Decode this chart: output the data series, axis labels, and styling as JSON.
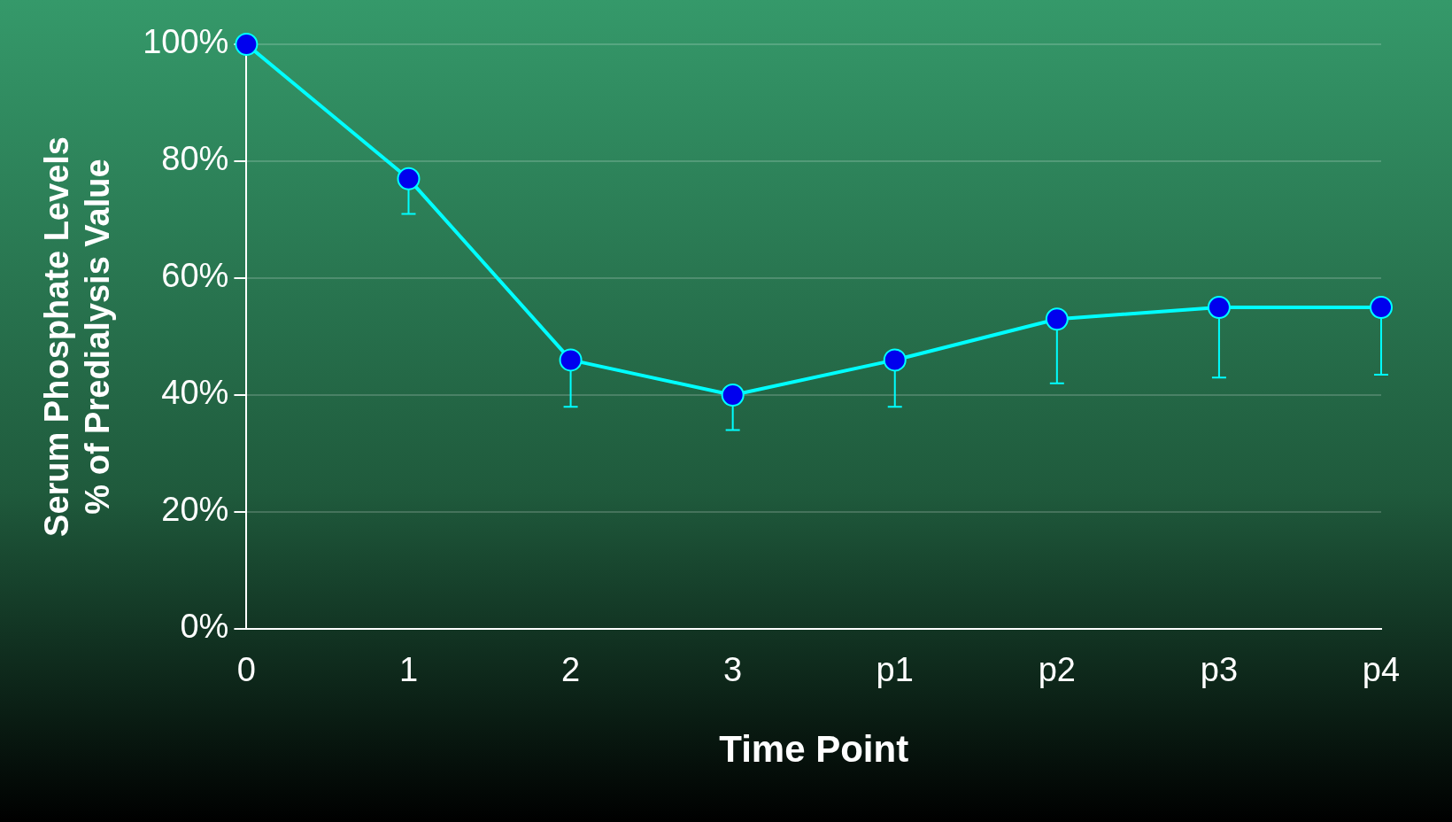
{
  "chart_data": {
    "type": "line",
    "xlabel": "Time Point",
    "ylabel": "Serum Phosphate Levels\n% of Predialysis Value",
    "categories": [
      "0",
      "1",
      "2",
      "3",
      "p1",
      "p2",
      "p3",
      "p4"
    ],
    "series": [
      {
        "color": "#00ffff",
        "values": [
          100,
          77,
          46,
          40,
          46,
          53,
          55,
          55
        ],
        "errors": [
          null,
          [
            71,
            77
          ],
          [
            38,
            46
          ],
          [
            34,
            40
          ],
          [
            38,
            46
          ],
          [
            42,
            53
          ],
          [
            43,
            55
          ],
          [
            43.5,
            55
          ]
        ]
      }
    ],
    "ylim": [
      0,
      100
    ],
    "yticks": [
      {
        "value": 0,
        "label": "0%"
      },
      {
        "value": 20,
        "label": "20%"
      },
      {
        "value": 40,
        "label": "40%"
      },
      {
        "value": 60,
        "label": "60%"
      },
      {
        "value": 80,
        "label": "80%"
      },
      {
        "value": 100,
        "label": "100%"
      }
    ],
    "grid": "y",
    "legend": false,
    "marker": "circle",
    "line_style": "solid"
  }
}
